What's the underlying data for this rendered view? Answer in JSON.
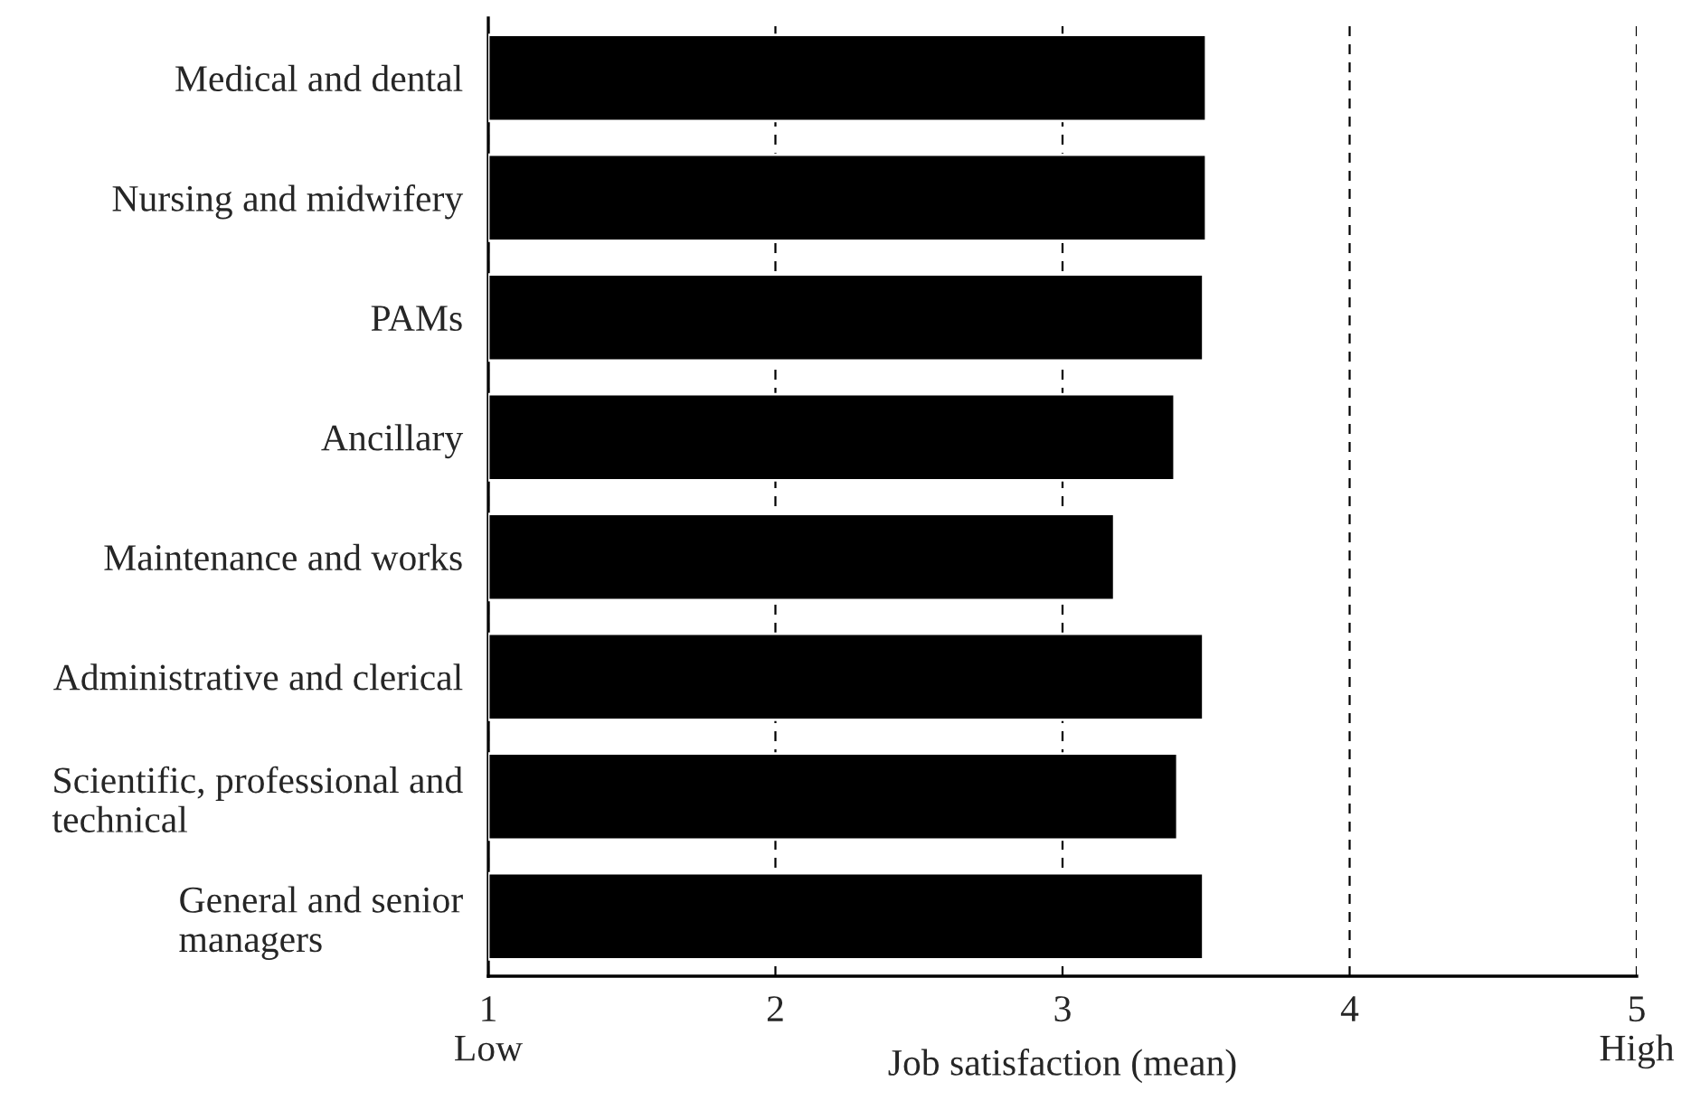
{
  "chart_data": {
    "type": "bar",
    "orientation": "horizontal",
    "categories": [
      "Medical and dental",
      "Nursing and midwifery",
      "PAMs",
      "Ancillary",
      "Maintenance and works",
      "Administrative and clerical",
      "Scientific, professional and\ntechnical",
      "General and senior\nmanagers"
    ],
    "values": [
      3.5,
      3.5,
      3.49,
      3.39,
      3.18,
      3.49,
      3.4,
      3.49
    ],
    "color": "#000000",
    "xlim": [
      1,
      5
    ],
    "xticks": [
      {
        "value": 1,
        "label": "1\nLow"
      },
      2,
      3,
      4,
      {
        "value": 5,
        "label": "5\nHigh"
      }
    ],
    "xlabel": "Job satisfaction (mean)",
    "grid": "x"
  }
}
